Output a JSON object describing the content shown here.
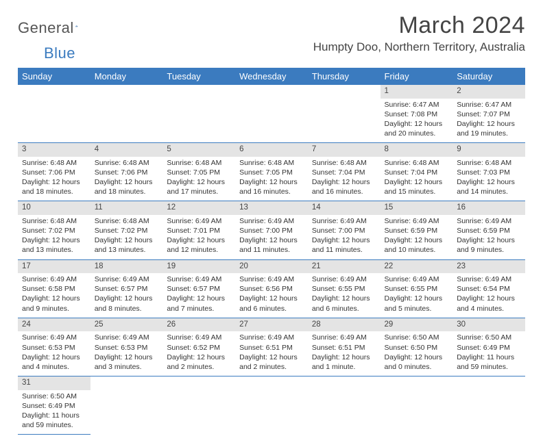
{
  "logo": {
    "part1": "General",
    "part2": "Blue"
  },
  "title": "March 2024",
  "location": "Humpty Doo, Northern Territory, Australia",
  "colors": {
    "header_bg": "#3b7bbf",
    "daynum_bg": "#e4e4e4",
    "rule": "#3b7bbf"
  },
  "days_of_week": [
    "Sunday",
    "Monday",
    "Tuesday",
    "Wednesday",
    "Thursday",
    "Friday",
    "Saturday"
  ],
  "weeks": [
    [
      null,
      null,
      null,
      null,
      null,
      {
        "n": "1",
        "sr": "Sunrise: 6:47 AM",
        "ss": "Sunset: 7:08 PM",
        "dl": "Daylight: 12 hours and 20 minutes."
      },
      {
        "n": "2",
        "sr": "Sunrise: 6:47 AM",
        "ss": "Sunset: 7:07 PM",
        "dl": "Daylight: 12 hours and 19 minutes."
      }
    ],
    [
      {
        "n": "3",
        "sr": "Sunrise: 6:48 AM",
        "ss": "Sunset: 7:06 PM",
        "dl": "Daylight: 12 hours and 18 minutes."
      },
      {
        "n": "4",
        "sr": "Sunrise: 6:48 AM",
        "ss": "Sunset: 7:06 PM",
        "dl": "Daylight: 12 hours and 18 minutes."
      },
      {
        "n": "5",
        "sr": "Sunrise: 6:48 AM",
        "ss": "Sunset: 7:05 PM",
        "dl": "Daylight: 12 hours and 17 minutes."
      },
      {
        "n": "6",
        "sr": "Sunrise: 6:48 AM",
        "ss": "Sunset: 7:05 PM",
        "dl": "Daylight: 12 hours and 16 minutes."
      },
      {
        "n": "7",
        "sr": "Sunrise: 6:48 AM",
        "ss": "Sunset: 7:04 PM",
        "dl": "Daylight: 12 hours and 16 minutes."
      },
      {
        "n": "8",
        "sr": "Sunrise: 6:48 AM",
        "ss": "Sunset: 7:04 PM",
        "dl": "Daylight: 12 hours and 15 minutes."
      },
      {
        "n": "9",
        "sr": "Sunrise: 6:48 AM",
        "ss": "Sunset: 7:03 PM",
        "dl": "Daylight: 12 hours and 14 minutes."
      }
    ],
    [
      {
        "n": "10",
        "sr": "Sunrise: 6:48 AM",
        "ss": "Sunset: 7:02 PM",
        "dl": "Daylight: 12 hours and 13 minutes."
      },
      {
        "n": "11",
        "sr": "Sunrise: 6:48 AM",
        "ss": "Sunset: 7:02 PM",
        "dl": "Daylight: 12 hours and 13 minutes."
      },
      {
        "n": "12",
        "sr": "Sunrise: 6:49 AM",
        "ss": "Sunset: 7:01 PM",
        "dl": "Daylight: 12 hours and 12 minutes."
      },
      {
        "n": "13",
        "sr": "Sunrise: 6:49 AM",
        "ss": "Sunset: 7:00 PM",
        "dl": "Daylight: 12 hours and 11 minutes."
      },
      {
        "n": "14",
        "sr": "Sunrise: 6:49 AM",
        "ss": "Sunset: 7:00 PM",
        "dl": "Daylight: 12 hours and 11 minutes."
      },
      {
        "n": "15",
        "sr": "Sunrise: 6:49 AM",
        "ss": "Sunset: 6:59 PM",
        "dl": "Daylight: 12 hours and 10 minutes."
      },
      {
        "n": "16",
        "sr": "Sunrise: 6:49 AM",
        "ss": "Sunset: 6:59 PM",
        "dl": "Daylight: 12 hours and 9 minutes."
      }
    ],
    [
      {
        "n": "17",
        "sr": "Sunrise: 6:49 AM",
        "ss": "Sunset: 6:58 PM",
        "dl": "Daylight: 12 hours and 9 minutes."
      },
      {
        "n": "18",
        "sr": "Sunrise: 6:49 AM",
        "ss": "Sunset: 6:57 PM",
        "dl": "Daylight: 12 hours and 8 minutes."
      },
      {
        "n": "19",
        "sr": "Sunrise: 6:49 AM",
        "ss": "Sunset: 6:57 PM",
        "dl": "Daylight: 12 hours and 7 minutes."
      },
      {
        "n": "20",
        "sr": "Sunrise: 6:49 AM",
        "ss": "Sunset: 6:56 PM",
        "dl": "Daylight: 12 hours and 6 minutes."
      },
      {
        "n": "21",
        "sr": "Sunrise: 6:49 AM",
        "ss": "Sunset: 6:55 PM",
        "dl": "Daylight: 12 hours and 6 minutes."
      },
      {
        "n": "22",
        "sr": "Sunrise: 6:49 AM",
        "ss": "Sunset: 6:55 PM",
        "dl": "Daylight: 12 hours and 5 minutes."
      },
      {
        "n": "23",
        "sr": "Sunrise: 6:49 AM",
        "ss": "Sunset: 6:54 PM",
        "dl": "Daylight: 12 hours and 4 minutes."
      }
    ],
    [
      {
        "n": "24",
        "sr": "Sunrise: 6:49 AM",
        "ss": "Sunset: 6:53 PM",
        "dl": "Daylight: 12 hours and 4 minutes."
      },
      {
        "n": "25",
        "sr": "Sunrise: 6:49 AM",
        "ss": "Sunset: 6:53 PM",
        "dl": "Daylight: 12 hours and 3 minutes."
      },
      {
        "n": "26",
        "sr": "Sunrise: 6:49 AM",
        "ss": "Sunset: 6:52 PM",
        "dl": "Daylight: 12 hours and 2 minutes."
      },
      {
        "n": "27",
        "sr": "Sunrise: 6:49 AM",
        "ss": "Sunset: 6:51 PM",
        "dl": "Daylight: 12 hours and 2 minutes."
      },
      {
        "n": "28",
        "sr": "Sunrise: 6:49 AM",
        "ss": "Sunset: 6:51 PM",
        "dl": "Daylight: 12 hours and 1 minute."
      },
      {
        "n": "29",
        "sr": "Sunrise: 6:50 AM",
        "ss": "Sunset: 6:50 PM",
        "dl": "Daylight: 12 hours and 0 minutes."
      },
      {
        "n": "30",
        "sr": "Sunrise: 6:50 AM",
        "ss": "Sunset: 6:49 PM",
        "dl": "Daylight: 11 hours and 59 minutes."
      }
    ],
    [
      {
        "n": "31",
        "sr": "Sunrise: 6:50 AM",
        "ss": "Sunset: 6:49 PM",
        "dl": "Daylight: 11 hours and 59 minutes."
      },
      null,
      null,
      null,
      null,
      null,
      null
    ]
  ]
}
